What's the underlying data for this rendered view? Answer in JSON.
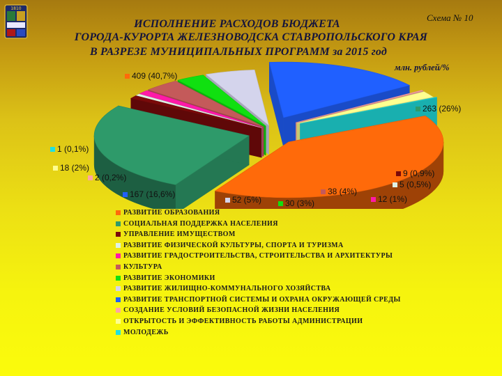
{
  "header": {
    "scheme_label": "Схема № 10",
    "title_line1": "ИСПОЛНЕНИЕ РАСХОДОВ БЮДЖЕТА",
    "title_line2": "ГОРОДА-КУРОРТА ЖЕЛЕЗНОВОДСКА СТАВРОПОЛЬСКОГО КРАЯ",
    "title_line3": "В РАЗРЕЗЕ МУНИЦИПАЛЬНЫХ ПРОГРАММ за 2015 год",
    "units": "млн. рублей/%",
    "logo_text": "1810"
  },
  "chart_data": {
    "type": "pie",
    "style": "3d-exploded",
    "slices": [
      {
        "name": "РАЗВИТИЕ ОБРАЗОВАНИЯ",
        "value": 409,
        "percent": 40.7,
        "label": "409 (40,7%)",
        "color": "#ff6a0a"
      },
      {
        "name": "СОЦИАЛЬНАЯ ПОДДЕРЖКА НАСЕЛЕНИЯ",
        "value": 263,
        "percent": 26,
        "label": "263 (26%)",
        "color": "#2e9a6a"
      },
      {
        "name": "УПРАВЛЕНИЕ ИМУЩЕСТВОМ",
        "value": 9,
        "percent": 0.9,
        "label": "9 (0,9%)",
        "color": "#7a0a0a"
      },
      {
        "name": "РАЗВИТИЕ ФИЗИЧЕСКОЙ КУЛЬТУРЫ, СПОРТА И ТУРИЗМА",
        "value": 5,
        "percent": 0.5,
        "label": "5 (0,5%)",
        "color": "#dff2e6"
      },
      {
        "name": "РАЗВИТИЕ ГРАДОСТРОИТЕЛЬСТВА, СТРОИТЕЛЬСТВА И АРХИТЕКТУРЫ",
        "value": 12,
        "percent": 1,
        "label": "12 (1%)",
        "color": "#ff1aa8"
      },
      {
        "name": "КУЛЬТУРА",
        "value": 38,
        "percent": 4,
        "label": "38 (4%)",
        "color": "#c45a5a"
      },
      {
        "name": "РАЗВИТИЕ ЭКОНОМИКИ",
        "value": 30,
        "percent": 3,
        "label": "30 (3%)",
        "color": "#10e010"
      },
      {
        "name": "РАЗВИТИЕ ЖИЛИЩНО-КОММУНАЛЬНОГО ХОЗЯЙСТВА",
        "value": 52,
        "percent": 5,
        "label": "52 (5%)",
        "color": "#d4d4ec"
      },
      {
        "name": "РАЗВИТИЕ ТРАНСПОРТНОЙ СИСТЕМЫ И ОХРАНА ОКРУЖАЮЩЕЙ СРЕДЫ",
        "value": 167,
        "percent": 16.6,
        "label": "167 (16,6%)",
        "color": "#2060ff"
      },
      {
        "name": "СОЗДАНИЕ УСЛОВИЙ БЕЗОПАСНОЙ ЖИЗНИ НАСЕЛЕНИЯ",
        "value": 2,
        "percent": 0.2,
        "label": "2 (0,2%)",
        "color": "#ffa5a5"
      },
      {
        "name": "ОТКРЫТОСТЬ И ЭФФЕКТИВНОСТЬ РАБОТЫ АДМИНИСТРАЦИИ",
        "value": 18,
        "percent": 2,
        "label": "18 (2%)",
        "color": "#ffff90"
      },
      {
        "name": "МОЛОДЕЖЬ",
        "value": 1,
        "percent": 0.1,
        "label": "1 (0,1%)",
        "color": "#20e0e0"
      }
    ]
  }
}
